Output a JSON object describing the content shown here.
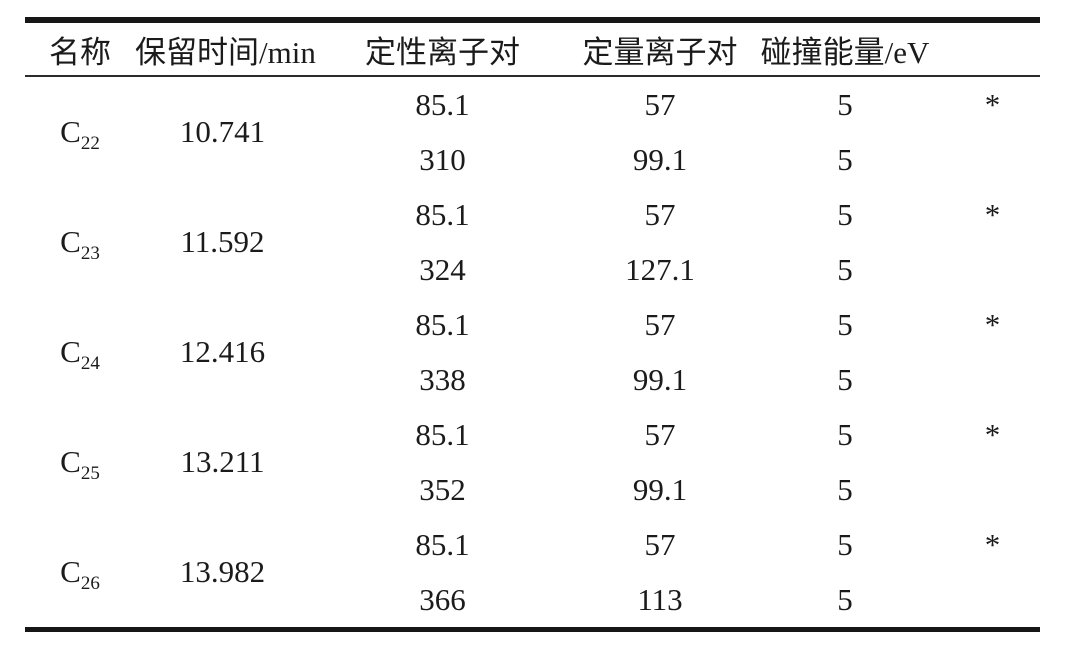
{
  "page": {
    "background": "#ffffff",
    "text_color": "#1b1b1b",
    "rule_color": "#161616"
  },
  "table": {
    "headers": [
      "名称",
      "保留时间/min",
      "定性离子对",
      "定量离子对",
      "碰撞能量/eV",
      ""
    ],
    "groups": [
      {
        "name_base": "C",
        "name_sub": "22",
        "retention": "10.741",
        "rows": [
          {
            "qual": "85.1",
            "quant": "57",
            "energy": "5",
            "star": "*"
          },
          {
            "qual": "310",
            "quant": "99.1",
            "energy": "5",
            "star": ""
          }
        ]
      },
      {
        "name_base": "C",
        "name_sub": "23",
        "retention": "11.592",
        "rows": [
          {
            "qual": "85.1",
            "quant": "57",
            "energy": "5",
            "star": "*"
          },
          {
            "qual": "324",
            "quant": "127.1",
            "energy": "5",
            "star": ""
          }
        ]
      },
      {
        "name_base": "C",
        "name_sub": "24",
        "retention": "12.416",
        "rows": [
          {
            "qual": "85.1",
            "quant": "57",
            "energy": "5",
            "star": "*"
          },
          {
            "qual": "338",
            "quant": "99.1",
            "energy": "5",
            "star": ""
          }
        ]
      },
      {
        "name_base": "C",
        "name_sub": "25",
        "retention": "13.211",
        "rows": [
          {
            "qual": "85.1",
            "quant": "57",
            "energy": "5",
            "star": "*"
          },
          {
            "qual": "352",
            "quant": "99.1",
            "energy": "5",
            "star": ""
          }
        ]
      },
      {
        "name_base": "C",
        "name_sub": "26",
        "retention": "13.982",
        "rows": [
          {
            "qual": "85.1",
            "quant": "57",
            "energy": "5",
            "star": "*"
          },
          {
            "qual": "366",
            "quant": "113",
            "energy": "5",
            "star": ""
          }
        ]
      }
    ]
  }
}
